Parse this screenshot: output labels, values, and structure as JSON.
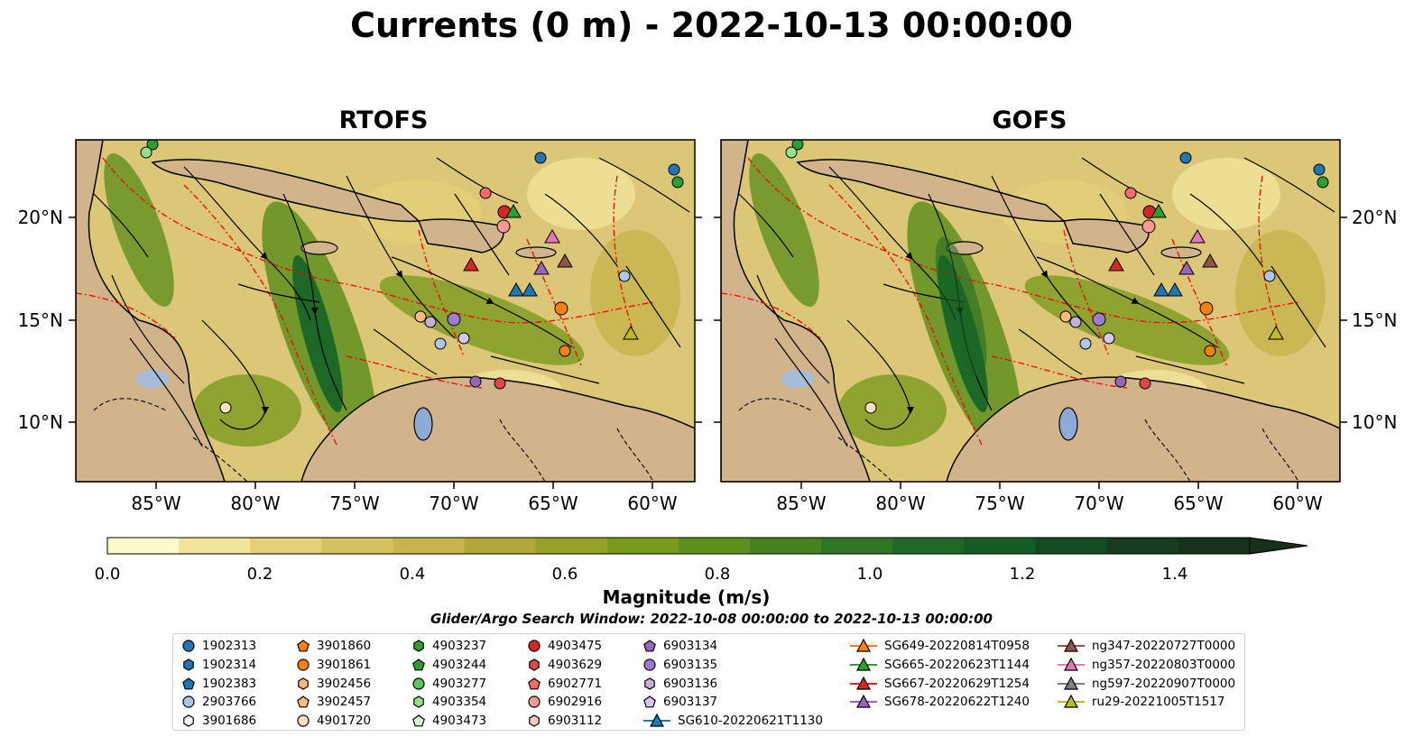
{
  "figure": {
    "title": "Currents (0 m) - 2022-10-13 00:00:00",
    "search_window": "Glider/Argo Search Window: 2022-10-08 00:00:00 to 2022-10-13 00:00:00"
  },
  "panels": [
    {
      "title": "RTOFS"
    },
    {
      "title": "GOFS"
    }
  ],
  "map": {
    "lon_range": [
      -89.5,
      -58.0
    ],
    "lat_range": [
      7.0,
      24.0
    ],
    "x_ticks": [
      "85°W",
      "80°W",
      "75°W",
      "70°W",
      "65°W",
      "60°W"
    ],
    "y_ticks": [
      "20°N",
      "15°N",
      "10°N"
    ],
    "land_color": "#d2b48c",
    "eez_boundary_color": "#ff0000",
    "streamline_color": "#000000"
  },
  "colorbar": {
    "label": "Magnitude (m/s)",
    "range": [
      0.0,
      1.5
    ],
    "extend": "max",
    "tick_labels": [
      "0.0",
      "0.2",
      "0.4",
      "0.6",
      "0.8",
      "1.0",
      "1.2",
      "1.4"
    ],
    "colors": [
      "#fefbcb",
      "#f0e49a",
      "#e3cf78",
      "#d6c161",
      "#c8b34c",
      "#b0a83a",
      "#95a228",
      "#7a9a1e",
      "#5f8f1d",
      "#45821f",
      "#2f7524",
      "#1d6727",
      "#165a26",
      "#154b22",
      "#163b1d",
      "#17301a"
    ]
  },
  "legend": {
    "argo": [
      {
        "label": "1902313",
        "marker": "circle",
        "color": "#1f77b4"
      },
      {
        "label": "1902314",
        "marker": "hexagon",
        "color": "#1f77b4"
      },
      {
        "label": "1902383",
        "marker": "pentagon",
        "color": "#1f77b4"
      },
      {
        "label": "2903766",
        "marker": "circle",
        "color": "#aec7e8"
      },
      {
        "label": "3901686",
        "marker": "hexagon",
        "color": "#ffffff"
      },
      {
        "label": "3901860",
        "marker": "pentagon",
        "color": "#ff7f0e"
      },
      {
        "label": "3901861",
        "marker": "circle",
        "color": "#ff7f0e"
      },
      {
        "label": "3902456",
        "marker": "hexagon",
        "color": "#ffbb78"
      },
      {
        "label": "3902457",
        "marker": "pentagon",
        "color": "#ffbb78"
      },
      {
        "label": "4901720",
        "marker": "circle",
        "color": "#ffe0c0"
      },
      {
        "label": "4903237",
        "marker": "hexagon",
        "color": "#2ca02c"
      },
      {
        "label": "4903244",
        "marker": "pentagon",
        "color": "#2ca02c"
      },
      {
        "label": "4903277",
        "marker": "circle",
        "color": "#5bc85b"
      },
      {
        "label": "4903354",
        "marker": "hexagon",
        "color": "#98df8a"
      },
      {
        "label": "4903473",
        "marker": "pentagon",
        "color": "#d4f7c8"
      },
      {
        "label": "4903475",
        "marker": "circle",
        "color": "#d62728"
      },
      {
        "label": "4903629",
        "marker": "hexagon",
        "color": "#e04848"
      },
      {
        "label": "6902771",
        "marker": "pentagon",
        "color": "#ff6b6b"
      },
      {
        "label": "6902916",
        "marker": "circle",
        "color": "#ff9896"
      },
      {
        "label": "6903112",
        "marker": "hexagon",
        "color": "#ffc8c8"
      },
      {
        "label": "6903134",
        "marker": "pentagon",
        "color": "#9467bd"
      },
      {
        "label": "6903135",
        "marker": "circle",
        "color": "#a07cd0"
      },
      {
        "label": "6903136",
        "marker": "hexagon",
        "color": "#c5b0d5"
      },
      {
        "label": "6903137",
        "marker": "pentagon",
        "color": "#d6c6e8"
      }
    ],
    "gliders": [
      {
        "label": "SG610-20220621T1130",
        "color": "#1f77b4"
      },
      {
        "label": "SG649-20220814T0958",
        "color": "#ff7f0e"
      },
      {
        "label": "SG665-20220623T1144",
        "color": "#2ca02c"
      },
      {
        "label": "SG667-20220629T1254",
        "color": "#d62728"
      },
      {
        "label": "SG678-20220622T1240",
        "color": "#9467bd"
      },
      {
        "label": "ng347-20220727T0000",
        "color": "#8c564b"
      },
      {
        "label": "ng357-20220803T0000",
        "color": "#e377c2"
      },
      {
        "label": "ng597-20220907T0000",
        "color": "#7f7f7f"
      },
      {
        "label": "ru29-20221005T1517",
        "color": "#bcbd22"
      }
    ]
  }
}
